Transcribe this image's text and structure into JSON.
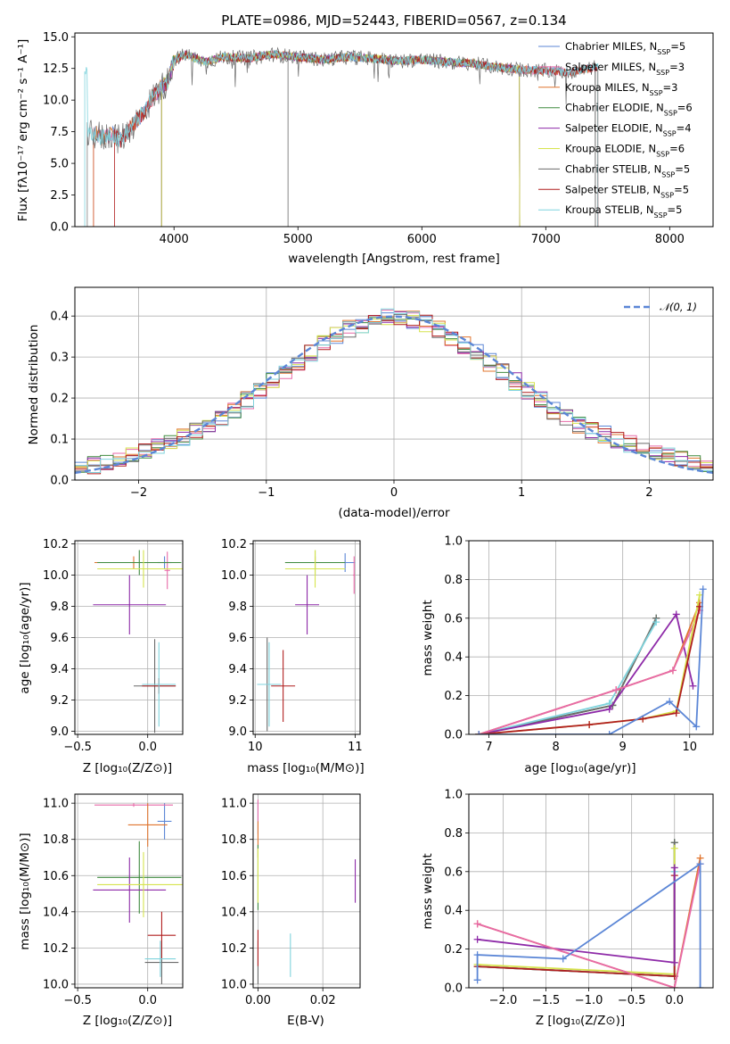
{
  "figure_title": "PLATE=0986, MJD=52443, FIBERID=0567, z=0.134",
  "colors": {
    "Chabrier MILES": "#5b86d6",
    "Salpeter MILES": "#e76aa8",
    "Kroupa MILES": "#e0742e",
    "Chabrier ELODIE": "#3f8a3f",
    "Salpeter ELODIE": "#8e2aa8",
    "Kroupa ELODIE": "#d6e44e",
    "Chabrier STELIB": "#6a6a6a",
    "Salpeter STELIB": "#b01e1e",
    "Kroupa STELIB": "#7fd3dd",
    "gaussian": "#5b86d6"
  },
  "chart_data": [
    {
      "id": "spectrum",
      "type": "line",
      "title": "PLATE=0986, MJD=52443, FIBERID=0567, z=0.134",
      "xlabel": "wavelength [Angstrom, rest frame]",
      "ylabel": "Flux [fλ10⁻¹⁷ erg cm⁻² s⁻¹ A⁻¹]",
      "xlim": [
        3200,
        8350
      ],
      "ylim": [
        0,
        15.3
      ],
      "xticks": [
        4000,
        5000,
        6000,
        7000,
        8000
      ],
      "yticks": [
        0.0,
        2.5,
        5.0,
        7.5,
        10.0,
        12.5,
        15.0
      ],
      "grid": false,
      "legend_position": "right",
      "legend": [
        {
          "name": "Chabrier MILES",
          "label": "Chabrier MILES, N",
          "sub": "SSP",
          "tail": "=5"
        },
        {
          "name": "Salpeter MILES",
          "label": "Salpeter MILES, N",
          "sub": "SSP",
          "tail": "=3"
        },
        {
          "name": "Kroupa MILES",
          "label": "Kroupa MILES, N",
          "sub": "SSP",
          "tail": "=3"
        },
        {
          "name": "Chabrier ELODIE",
          "label": "Chabrier ELODIE, N",
          "sub": "SSP",
          "tail": "=6"
        },
        {
          "name": "Salpeter ELODIE",
          "label": "Salpeter ELODIE, N",
          "sub": "SSP",
          "tail": "=4"
        },
        {
          "name": "Kroupa ELODIE",
          "label": "Kroupa ELODIE, N",
          "sub": "SSP",
          "tail": "=6"
        },
        {
          "name": "Chabrier STELIB",
          "label": "Chabrier STELIB, N",
          "sub": "SSP",
          "tail": "=5"
        },
        {
          "name": "Salpeter STELIB",
          "label": "Salpeter STELIB, N",
          "sub": "SSP",
          "tail": "=5"
        },
        {
          "name": "Kroupa STELIB",
          "label": "Kroupa STELIB, N",
          "sub": "SSP",
          "tail": "=5"
        }
      ],
      "continuum": {
        "x": [
          3300,
          3380,
          3420,
          3500,
          3560,
          3650,
          3750,
          3850,
          3950,
          4000,
          4100,
          4250,
          4400,
          4600,
          4800,
          5000,
          5200,
          5400,
          5600,
          5800,
          6000,
          6200,
          6400,
          6600,
          6800,
          7000,
          7200,
          7400
        ],
        "y": [
          7.2,
          7.3,
          7.0,
          7.4,
          6.8,
          7.8,
          9.0,
          10.5,
          11.5,
          13.2,
          13.6,
          13.0,
          13.4,
          13.3,
          13.6,
          13.4,
          13.2,
          13.4,
          13.3,
          13.1,
          13.2,
          13.0,
          12.9,
          12.6,
          12.4,
          12.3,
          12.2,
          12.6
        ]
      },
      "series_ranges": [
        {
          "name": "Chabrier MILES",
          "x_start": 3350,
          "x_end": 7420
        },
        {
          "name": "Salpeter MILES",
          "x_start": 3350,
          "x_end": 7420
        },
        {
          "name": "Kroupa MILES",
          "x_start": 3350,
          "x_end": 7420
        },
        {
          "name": "Chabrier ELODIE",
          "x_start": 3900,
          "x_end": 6790
        },
        {
          "name": "Salpeter ELODIE",
          "x_start": 3900,
          "x_end": 6790
        },
        {
          "name": "Kroupa ELODIE",
          "x_start": 3900,
          "x_end": 6790
        },
        {
          "name": "Chabrier STELIB",
          "x_start": 3300,
          "x_end": 7400
        },
        {
          "name": "Salpeter STELIB",
          "x_start": 3520,
          "x_end": 7420
        },
        {
          "name": "Kroupa STELIB",
          "x_start": 3280,
          "x_end": 7420
        }
      ]
    },
    {
      "id": "residuals",
      "type": "histogram",
      "xlabel": "(data-model)/error",
      "ylabel": "Normed distribution",
      "xlim": [
        -2.5,
        2.5
      ],
      "ylim": [
        0,
        0.47
      ],
      "xticks": [
        -2,
        -1,
        0,
        1,
        2
      ],
      "yticks": [
        0.0,
        0.1,
        0.2,
        0.3,
        0.4
      ],
      "grid": true,
      "legend_position": "top-right",
      "legend_label": "𝒩(0, 1)",
      "bin_width": 0.1,
      "profile": {
        "x": [
          -2.45,
          -2.15,
          -1.85,
          -1.55,
          -1.25,
          -0.95,
          -0.65,
          -0.35,
          -0.05,
          0.05,
          0.35,
          0.65,
          0.95,
          1.25,
          1.55,
          1.85,
          2.15,
          2.45
        ],
        "y": [
          0.03,
          0.05,
          0.08,
          0.12,
          0.17,
          0.24,
          0.31,
          0.37,
          0.4,
          0.4,
          0.37,
          0.31,
          0.24,
          0.17,
          0.12,
          0.09,
          0.06,
          0.04
        ]
      }
    },
    {
      "id": "age-vs-z",
      "type": "scatter",
      "xlabel": "Z [log₁₀(Z/Z⊙)]",
      "ylabel": "age  [log₁₀(age/yr)]",
      "xlim": [
        -0.52,
        0.25
      ],
      "ylim": [
        8.98,
        10.22
      ],
      "xticks": [
        -0.5,
        0.0
      ],
      "yticks": [
        9.0,
        9.2,
        9.4,
        9.6,
        9.8,
        10.0,
        10.2
      ],
      "grid": true,
      "points": [
        {
          "name": "Chabrier MILES",
          "x": 0.12,
          "y": 10.08,
          "xerr": 0.05,
          "yerr": 0.04
        },
        {
          "name": "Salpeter MILES",
          "x": 0.14,
          "y": 10.03,
          "xerr": 0.02,
          "yerr": 0.12
        },
        {
          "name": "Kroupa MILES",
          "x": -0.1,
          "y": 10.08,
          "xerr": 0.28,
          "yerr": 0.04
        },
        {
          "name": "Chabrier ELODIE",
          "x": -0.06,
          "y": 10.08,
          "xerr": 0.3,
          "yerr": 0.08
        },
        {
          "name": "Salpeter ELODIE",
          "x": -0.13,
          "y": 9.81,
          "xerr": 0.26,
          "yerr": 0.19
        },
        {
          "name": "Kroupa ELODIE",
          "x": -0.03,
          "y": 10.04,
          "xerr": 0.33,
          "yerr": 0.12
        },
        {
          "name": "Chabrier STELIB",
          "x": 0.05,
          "y": 9.29,
          "xerr": 0.15,
          "yerr": 0.3
        },
        {
          "name": "Salpeter STELIB",
          "x": 0.08,
          "y": 9.29,
          "xerr": 0.12,
          "yerr": 0.05
        },
        {
          "name": "Kroupa STELIB",
          "x": 0.08,
          "y": 9.3,
          "xerr": 0.12,
          "yerr": 0.27
        }
      ]
    },
    {
      "id": "age-vs-mass",
      "type": "scatter",
      "xlabel": "mass [log₁₀(M/M⊙)]",
      "ylabel": "",
      "xlim": [
        9.98,
        11.05
      ],
      "ylim": [
        8.98,
        10.22
      ],
      "xticks": [
        10,
        11
      ],
      "yticks": [
        9.0,
        9.2,
        9.4,
        9.6,
        9.8,
        10.0,
        10.2
      ],
      "grid": true,
      "points": [
        {
          "name": "Chabrier MILES",
          "x": 10.9,
          "y": 10.08,
          "xerr": 0.1,
          "yerr": 0.06
        },
        {
          "name": "Salpeter MILES",
          "x": 10.99,
          "y": 10.0,
          "xerr": 0.01,
          "yerr": 0.12
        },
        {
          "name": "Kroupa MILES",
          "x": 10.6,
          "y": 10.08,
          "xerr": 0.3,
          "yerr": 0.04
        },
        {
          "name": "Chabrier ELODIE",
          "x": 10.6,
          "y": 10.08,
          "xerr": 0.3,
          "yerr": 0.08
        },
        {
          "name": "Salpeter ELODIE",
          "x": 10.52,
          "y": 9.81,
          "xerr": 0.12,
          "yerr": 0.19
        },
        {
          "name": "Kroupa ELODIE",
          "x": 10.6,
          "y": 10.04,
          "xerr": 0.3,
          "yerr": 0.12
        },
        {
          "name": "Chabrier STELIB",
          "x": 10.12,
          "y": 9.3,
          "xerr": 0.1,
          "yerr": 0.3
        },
        {
          "name": "Salpeter STELIB",
          "x": 10.28,
          "y": 9.29,
          "xerr": 0.12,
          "yerr": 0.23
        },
        {
          "name": "Kroupa STELIB",
          "x": 10.14,
          "y": 9.3,
          "xerr": 0.12,
          "yerr": 0.27
        }
      ]
    },
    {
      "id": "weight-vs-age",
      "type": "line",
      "xlabel": "age  [log₁₀(age/yr)]",
      "ylabel": "mass weight",
      "xlim": [
        6.7,
        10.35
      ],
      "ylim": [
        0,
        1.0
      ],
      "xticks": [
        7,
        8,
        9,
        10
      ],
      "yticks": [
        0.0,
        0.2,
        0.4,
        0.6,
        0.8,
        1.0
      ],
      "grid": true,
      "series": [
        {
          "name": "Chabrier ELODIE",
          "x": [
            6.85,
            8.85,
            9.5
          ],
          "y": [
            0.0,
            0.15,
            0.6
          ]
        },
        {
          "name": "Chabrier STELIB",
          "x": [
            6.85,
            8.85,
            9.5
          ],
          "y": [
            0.0,
            0.15,
            0.6
          ]
        },
        {
          "name": "Kroupa STELIB",
          "x": [
            6.85,
            8.8,
            9.5
          ],
          "y": [
            0.0,
            0.16,
            0.58
          ]
        },
        {
          "name": "Salpeter ELODIE",
          "x": [
            6.85,
            8.8,
            9.8,
            10.05
          ],
          "y": [
            0.0,
            0.13,
            0.62,
            0.25
          ]
        },
        {
          "name": "Kroupa MILES",
          "x": [
            6.85,
            8.9,
            9.75,
            10.15
          ],
          "y": [
            0.0,
            0.23,
            0.33,
            0.68
          ]
        },
        {
          "name": "Salpeter MILES",
          "x": [
            6.85,
            8.9,
            9.75,
            10.15
          ],
          "y": [
            0.0,
            0.23,
            0.33,
            0.64
          ]
        },
        {
          "name": "Kroupa ELODIE",
          "x": [
            6.85,
            8.5,
            9.3,
            9.8,
            10.15
          ],
          "y": [
            0.0,
            0.05,
            0.08,
            0.12,
            0.72
          ]
        },
        {
          "name": "Salpeter STELIB",
          "x": [
            6.85,
            8.5,
            9.3,
            9.8,
            10.15
          ],
          "y": [
            0.0,
            0.05,
            0.08,
            0.11,
            0.66
          ]
        },
        {
          "name": "Chabrier MILES",
          "x": [
            6.85,
            8.8,
            9.7,
            10.1,
            10.2
          ],
          "y": [
            0.0,
            0.0,
            0.17,
            0.04,
            0.75
          ]
        }
      ]
    },
    {
      "id": "mass-vs-z",
      "type": "scatter",
      "xlabel": "Z [log₁₀(Z/Z⊙)]",
      "ylabel": "mass [log₁₀(M/M⊙)]",
      "xlim": [
        -0.52,
        0.25
      ],
      "ylim": [
        9.98,
        11.05
      ],
      "xticks": [
        -0.5,
        0.0
      ],
      "yticks": [
        10.0,
        10.2,
        10.4,
        10.6,
        10.8,
        11.0
      ],
      "grid": true,
      "points": [
        {
          "name": "Chabrier MILES",
          "x": 0.12,
          "y": 10.9,
          "xerr": 0.05,
          "yerr": 0.1
        },
        {
          "name": "Salpeter MILES",
          "x": -0.1,
          "y": 10.99,
          "xerr": 0.28,
          "yerr": 0.01
        },
        {
          "name": "Kroupa MILES",
          "x": 0.0,
          "y": 10.88,
          "xerr": 0.14,
          "yerr": 0.12
        },
        {
          "name": "Chabrier ELODIE",
          "x": -0.06,
          "y": 10.59,
          "xerr": 0.3,
          "yerr": 0.2
        },
        {
          "name": "Salpeter ELODIE",
          "x": -0.13,
          "y": 10.52,
          "xerr": 0.26,
          "yerr": 0.18
        },
        {
          "name": "Kroupa ELODIE",
          "x": -0.03,
          "y": 10.55,
          "xerr": 0.33,
          "yerr": 0.18
        },
        {
          "name": "Chabrier STELIB",
          "x": 0.1,
          "y": 10.12,
          "xerr": 0.12,
          "yerr": 0.12
        },
        {
          "name": "Salpeter STELIB",
          "x": 0.1,
          "y": 10.27,
          "xerr": 0.1,
          "yerr": 0.13
        },
        {
          "name": "Kroupa STELIB",
          "x": 0.09,
          "y": 10.14,
          "xerr": 0.11,
          "yerr": 0.1
        }
      ]
    },
    {
      "id": "mass-vs-ebv",
      "type": "scatter",
      "xlabel": "E(B-V)",
      "ylabel": "",
      "xlim": [
        -0.0015,
        0.0315
      ],
      "ylim": [
        9.98,
        11.05
      ],
      "xticks": [
        0.0,
        0.02
      ],
      "yticks": [
        10.0,
        10.2,
        10.4,
        10.6,
        10.8,
        11.0
      ],
      "grid": true,
      "points": [
        {
          "name": "Chabrier MILES",
          "x": 0.0,
          "y": 10.92,
          "xerr": 0.0,
          "yerr": 0.09
        },
        {
          "name": "Salpeter MILES",
          "x": 0.0,
          "y": 10.96,
          "xerr": 0.0,
          "yerr": 0.06
        },
        {
          "name": "Kroupa MILES",
          "x": 0.0,
          "y": 10.8,
          "xerr": 0.0,
          "yerr": 0.1
        },
        {
          "name": "Chabrier ELODIE",
          "x": 0.0,
          "y": 10.59,
          "xerr": 0.0,
          "yerr": 0.18
        },
        {
          "name": "Salpeter ELODIE",
          "x": 0.03,
          "y": 10.57,
          "xerr": 0.0,
          "yerr": 0.12
        },
        {
          "name": "Kroupa ELODIE",
          "x": 0.0,
          "y": 10.6,
          "xerr": 0.0,
          "yerr": 0.15
        },
        {
          "name": "Chabrier STELIB",
          "x": 0.0,
          "y": 10.12,
          "xerr": 0.0,
          "yerr": 0.12
        },
        {
          "name": "Salpeter STELIB",
          "x": 0.0,
          "y": 10.2,
          "xerr": 0.0,
          "yerr": 0.1
        },
        {
          "name": "Kroupa STELIB",
          "x": 0.01,
          "y": 10.16,
          "xerr": 0.0,
          "yerr": 0.12
        }
      ]
    },
    {
      "id": "weight-vs-z",
      "type": "line",
      "xlabel": "Z [log₁₀(Z/Z⊙)]",
      "ylabel": "mass weight",
      "xlim": [
        -2.4,
        0.45
      ],
      "ylim": [
        0,
        1.0
      ],
      "xticks": [
        -2.0,
        -1.5,
        -1.0,
        -0.5,
        0.0
      ],
      "yticks": [
        0.0,
        0.2,
        0.4,
        0.6,
        0.8,
        1.0
      ],
      "grid": true,
      "series": [
        {
          "name": "Chabrier ELODIE",
          "x": [
            -2.3,
            0.0,
            0.0
          ],
          "y": [
            0.11,
            0.06,
            0.75
          ]
        },
        {
          "name": "Chabrier STELIB",
          "x": [
            -2.3,
            0.0,
            0.0
          ],
          "y": [
            0.11,
            0.06,
            0.75
          ]
        },
        {
          "name": "Kroupa ELODIE",
          "x": [
            -2.3,
            0.0,
            0.0
          ],
          "y": [
            0.12,
            0.07,
            0.72
          ]
        },
        {
          "name": "Kroupa STELIB",
          "x": [
            -2.3,
            0.0,
            0.0
          ],
          "y": [
            0.11,
            0.06,
            0.6
          ]
        },
        {
          "name": "Salpeter STELIB",
          "x": [
            -2.3,
            0.0,
            0.0
          ],
          "y": [
            0.11,
            0.06,
            0.58
          ]
        },
        {
          "name": "Salpeter ELODIE",
          "x": [
            -2.3,
            0.0,
            0.0
          ],
          "y": [
            0.25,
            0.13,
            0.62
          ]
        },
        {
          "name": "Kroupa MILES",
          "x": [
            -2.3,
            0.0,
            0.3
          ],
          "y": [
            0.33,
            0.0,
            0.67
          ]
        },
        {
          "name": "Salpeter MILES",
          "x": [
            -2.3,
            0.0,
            0.3
          ],
          "y": [
            0.33,
            0.0,
            0.64
          ]
        },
        {
          "name": "Chabrier MILES",
          "x": [
            -2.3,
            -2.3,
            -1.3,
            0.3,
            0.3
          ],
          "y": [
            0.04,
            0.17,
            0.15,
            0.64,
            0.0
          ]
        }
      ]
    }
  ]
}
